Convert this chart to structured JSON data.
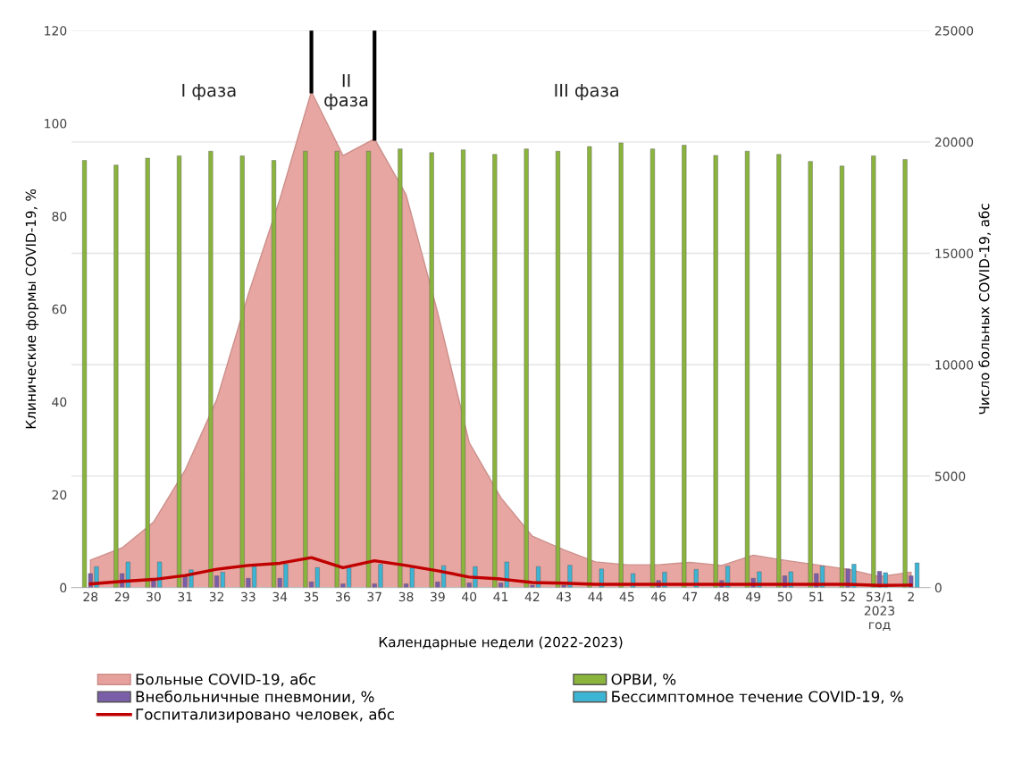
{
  "chart_data": {
    "type": "bar",
    "xlabel": "Календарные недели (2022-2023)",
    "ylabel": "Клинические формы COVID-19, %",
    "y2label": "Число больных COVID-19, абс",
    "categories": [
      "28",
      "29",
      "30",
      "31",
      "32",
      "33",
      "34",
      "35",
      "36",
      "37",
      "38",
      "39",
      "40",
      "41",
      "42",
      "43",
      "44",
      "45",
      "46",
      "47",
      "48",
      "49",
      "50",
      "51",
      "52",
      "53/1\n2023\nгод",
      "2"
    ],
    "series": [
      {
        "name": "Больные COVID-19, абс",
        "type": "area",
        "axis": "y2",
        "color": "#e6a19c",
        "values": [
          1230,
          1780,
          2940,
          5270,
          8430,
          13160,
          17430,
          22260,
          19390,
          20140,
          17630,
          12350,
          6510,
          4040,
          2300,
          1690,
          1150,
          1020,
          1020,
          1130,
          990,
          1450,
          1220,
          1020,
          820,
          490,
          690
        ]
      },
      {
        "name": "Внебольничные пневмонии, %",
        "color": "#7b5ea8",
        "values": [
          3,
          3,
          2,
          2.5,
          2.5,
          2,
          2,
          1.2,
          0.8,
          0.8,
          0.8,
          1.2,
          1,
          1,
          0.5,
          0.5,
          null,
          null,
          1.5,
          null,
          1.5,
          2,
          2.5,
          3,
          4,
          3.5,
          2.5
        ]
      },
      {
        "name": "Госпитализировано человек, абс",
        "type": "line",
        "axis": "y2",
        "color": "#c00000",
        "values": [
          160,
          270,
          360,
          540,
          820,
          990,
          1090,
          1340,
          890,
          1200,
          990,
          750,
          470,
          380,
          220,
          190,
          140,
          140,
          140,
          140,
          140,
          140,
          140,
          140,
          140,
          90,
          110
        ]
      },
      {
        "name": "ОРВИ, %",
        "color": "#8ab43c",
        "values": [
          92,
          91,
          92.5,
          93,
          94,
          93,
          92,
          94,
          94,
          94,
          94.5,
          93.7,
          94.3,
          93.3,
          94.5,
          94,
          95,
          95.8,
          94.5,
          95.3,
          93.1,
          94,
          93.3,
          91.8,
          90.8,
          93,
          92.2
        ]
      },
      {
        "name": "Бессимптомное течение COVID-19, %",
        "color": "#3cb4d4",
        "values": [
          4.5,
          5.5,
          5.5,
          3.8,
          3.3,
          4.5,
          5,
          4.3,
          4.3,
          5,
          4.2,
          4.7,
          4.5,
          5.5,
          4.5,
          4.8,
          4,
          3,
          3.3,
          3.9,
          4.6,
          3.4,
          3.4,
          4.6,
          5,
          3.2,
          5.3
        ]
      }
    ],
    "ylim": [
      0,
      120
    ],
    "yticks": [
      0,
      20,
      40,
      60,
      80,
      100,
      120
    ],
    "y2lim": [
      0,
      25000
    ],
    "y2ticks": [
      0,
      5000,
      10000,
      15000,
      20000,
      25000
    ],
    "ref_lines": [
      {
        "axis": "x",
        "value": "35",
        "color": "#000000"
      },
      {
        "axis": "x",
        "value": "37",
        "color": "#000000"
      }
    ],
    "annotations": [
      "I фаза",
      "II\nфаза",
      "III фаза"
    ],
    "grid": "y",
    "legend": "bottom"
  }
}
